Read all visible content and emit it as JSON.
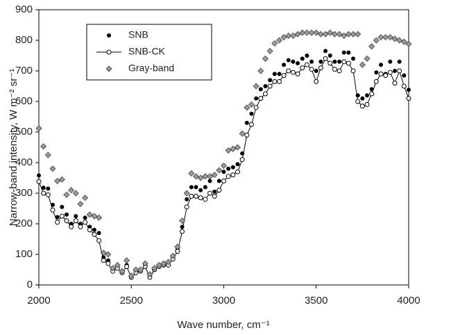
{
  "chart_data": {
    "type": "scatter",
    "x_label": "Wave number, cm⁻¹",
    "y_label": "Narrow-band intensity, W m⁻² sr⁻¹",
    "xlim": [
      2000,
      4000
    ],
    "xticks": [
      2000,
      2500,
      3000,
      3500,
      4000
    ],
    "ylim": [
      0,
      900
    ],
    "yticks": [
      0,
      100,
      200,
      300,
      400,
      500,
      600,
      700,
      800,
      900
    ],
    "legend": "upper-left",
    "x": [
      2000,
      2025,
      2050,
      2075,
      2100,
      2125,
      2150,
      2175,
      2200,
      2225,
      2250,
      2275,
      2300,
      2325,
      2350,
      2375,
      2400,
      2425,
      2450,
      2475,
      2500,
      2525,
      2550,
      2575,
      2600,
      2625,
      2650,
      2675,
      2700,
      2725,
      2750,
      2775,
      2800,
      2825,
      2850,
      2875,
      2900,
      2925,
      2950,
      2975,
      3000,
      3025,
      3050,
      3075,
      3100,
      3125,
      3150,
      3175,
      3200,
      3225,
      3250,
      3275,
      3300,
      3325,
      3350,
      3375,
      3400,
      3425,
      3450,
      3475,
      3500,
      3525,
      3550,
      3575,
      3600,
      3625,
      3650,
      3675,
      3700,
      3725,
      3750,
      3775,
      3800,
      3825,
      3850,
      3875,
      3900,
      3925,
      3950,
      3975,
      4000
    ],
    "series": [
      {
        "name": "SNB",
        "color": "#000000",
        "marker": "dot",
        "line": false,
        "values": [
          358,
          318,
          315,
          262,
          222,
          255,
          230,
          200,
          225,
          200,
          220,
          190,
          180,
          170,
          90,
          80,
          50,
          60,
          45,
          65,
          30,
          45,
          50,
          65,
          30,
          55,
          65,
          70,
          70,
          90,
          120,
          190,
          280,
          320,
          320,
          310,
          320,
          340,
          305,
          340,
          370,
          380,
          385,
          395,
          430,
          530,
          560,
          610,
          640,
          650,
          670,
          690,
          690,
          720,
          735,
          730,
          725,
          740,
          750,
          730,
          700,
          730,
          765,
          750,
          730,
          730,
          760,
          760,
          740,
          620,
          610,
          620,
          640,
          695,
          720,
          690,
          730,
          700,
          730,
          685,
          638
        ]
      },
      {
        "name": "SNB-CK",
        "color": "#000000",
        "marker": "circle",
        "line": true,
        "values": [
          338,
          300,
          295,
          245,
          205,
          225,
          210,
          190,
          210,
          190,
          205,
          180,
          165,
          145,
          80,
          70,
          45,
          55,
          40,
          60,
          25,
          40,
          45,
          60,
          25,
          50,
          60,
          65,
          65,
          85,
          110,
          175,
          255,
          290,
          290,
          285,
          280,
          300,
          290,
          310,
          340,
          355,
          360,
          370,
          410,
          490,
          525,
          580,
          610,
          625,
          650,
          665,
          665,
          685,
          700,
          695,
          690,
          710,
          720,
          705,
          665,
          710,
          740,
          725,
          705,
          700,
          730,
          725,
          700,
          600,
          585,
          590,
          625,
          665,
          690,
          685,
          695,
          660,
          700,
          650,
          610
        ]
      },
      {
        "name": "Gray-band",
        "color": "#9a9a9a",
        "marker": "diamond",
        "line": false,
        "values": [
          512,
          453,
          425,
          380,
          340,
          345,
          295,
          310,
          300,
          265,
          285,
          230,
          225,
          220,
          105,
          100,
          55,
          65,
          45,
          80,
          30,
          50,
          50,
          70,
          35,
          55,
          65,
          70,
          75,
          95,
          125,
          210,
          300,
          365,
          355,
          350,
          355,
          355,
          360,
          375,
          390,
          440,
          445,
          450,
          495,
          580,
          590,
          650,
          700,
          740,
          765,
          790,
          800,
          810,
          815,
          815,
          820,
          825,
          825,
          825,
          825,
          820,
          820,
          825,
          820,
          820,
          815,
          820,
          820,
          820,
          720,
          740,
          780,
          800,
          810,
          810,
          810,
          805,
          800,
          795,
          788
        ]
      }
    ]
  }
}
